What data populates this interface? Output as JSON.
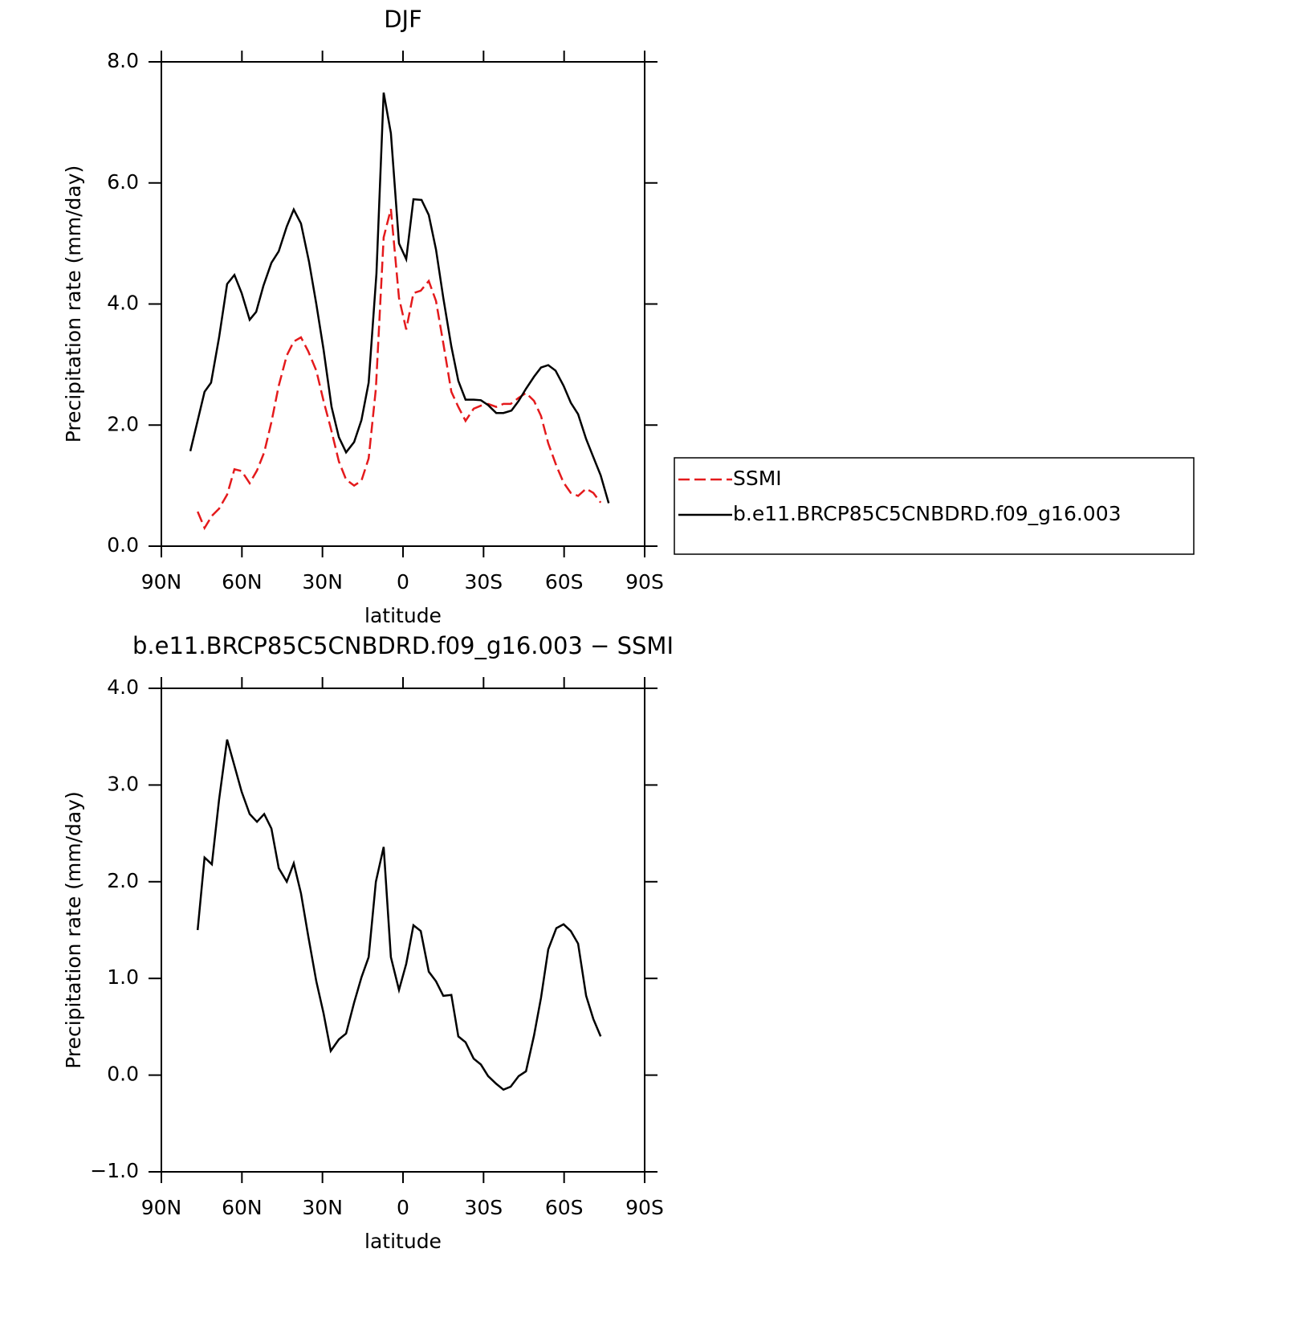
{
  "chart_data": [
    {
      "type": "line",
      "title": "DJF",
      "xlabel": "latitude",
      "ylabel": "Precipitation rate (mm/day)",
      "xlim": [
        90,
        -90
      ],
      "xticks": [
        {
          "value": 90,
          "label": "90N"
        },
        {
          "value": 60,
          "label": "60N"
        },
        {
          "value": 30,
          "label": "30N"
        },
        0,
        {
          "value": -30,
          "label": "30S"
        },
        {
          "value": -60,
          "label": "60S"
        },
        {
          "value": -90,
          "label": "90S"
        }
      ],
      "ylim": [
        0,
        8
      ],
      "yticks": [
        {
          "value": 0,
          "label": "0.0"
        },
        {
          "value": 2,
          "label": "2.0"
        },
        {
          "value": 4,
          "label": "4.0"
        },
        {
          "value": 6,
          "label": "6.0"
        },
        {
          "value": 8,
          "label": "8.0"
        }
      ],
      "legend": "outside right",
      "series": [
        {
          "name": "SSMI",
          "color": "#e41a1c",
          "dash": "dashed",
          "x": [
            76.5,
            73.9,
            71.2,
            68.5,
            65.5,
            62.8,
            60.1,
            57.1,
            54.4,
            51.7,
            49.0,
            46.3,
            43.3,
            40.7,
            38.0,
            35.3,
            32.3,
            29.6,
            26.9,
            23.9,
            21.2,
            18.2,
            15.5,
            12.8,
            10.1,
            7.2,
            4.5,
            1.5,
            -1.2,
            -3.9,
            -6.6,
            -9.6,
            -12.3,
            -15.0,
            -18.0,
            -20.6,
            -23.3,
            -26.3,
            -29.0,
            -31.7,
            -34.7,
            -37.4,
            -40.1,
            -43.1,
            -45.8,
            -48.8,
            -51.4,
            -54.1,
            -57.1,
            -59.8,
            -62.5,
            -65.2,
            -68.2,
            -70.9,
            -73.6
          ],
          "values": [
            0.57,
            0.3,
            0.5,
            0.62,
            0.85,
            1.27,
            1.24,
            1.04,
            1.25,
            1.55,
            2.05,
            2.65,
            3.15,
            3.38,
            3.45,
            3.22,
            2.9,
            2.4,
            1.95,
            1.4,
            1.1,
            1.0,
            1.08,
            1.45,
            2.6,
            5.1,
            5.57,
            4.1,
            3.58,
            4.18,
            4.22,
            4.38,
            4.05,
            3.35,
            2.55,
            2.3,
            2.07,
            2.27,
            2.32,
            2.35,
            2.3,
            2.35,
            2.35,
            2.45,
            2.53,
            2.4,
            2.15,
            1.7,
            1.33,
            1.05,
            0.88,
            0.83,
            0.95,
            0.88,
            0.72
          ]
        },
        {
          "name": "b.e11.BRCP85C5CNBDRD.f09_g16.003",
          "color": "#000000",
          "dash": "solid",
          "x": [
            79.2,
            73.9,
            71.5,
            68.5,
            65.5,
            62.8,
            60.1,
            57.1,
            54.7,
            52.0,
            49.0,
            46.3,
            43.3,
            40.7,
            38.0,
            35.0,
            32.3,
            29.6,
            26.6,
            23.9,
            21.2,
            18.2,
            15.5,
            12.8,
            9.9,
            7.2,
            4.5,
            1.5,
            -1.2,
            -3.9,
            -6.9,
            -9.6,
            -12.3,
            -15.0,
            -18.0,
            -20.6,
            -23.3,
            -26.3,
            -29.0,
            -31.7,
            -34.7,
            -37.4,
            -40.4,
            -43.1,
            -45.8,
            -48.8,
            -51.4,
            -54.1,
            -56.8,
            -59.8,
            -62.5,
            -65.2,
            -68.2,
            -70.9,
            -73.6,
            -76.6
          ],
          "values": [
            1.57,
            2.55,
            2.7,
            3.45,
            4.33,
            4.48,
            4.18,
            3.74,
            3.87,
            4.3,
            4.68,
            4.87,
            5.28,
            5.56,
            5.33,
            4.7,
            4.0,
            3.25,
            2.3,
            1.8,
            1.55,
            1.72,
            2.08,
            2.7,
            4.5,
            7.49,
            6.82,
            5.0,
            4.74,
            5.73,
            5.72,
            5.47,
            4.9,
            4.1,
            3.3,
            2.73,
            2.42,
            2.42,
            2.41,
            2.33,
            2.2,
            2.2,
            2.24,
            2.4,
            2.6,
            2.8,
            2.95,
            2.99,
            2.9,
            2.65,
            2.37,
            2.18,
            1.77,
            1.47,
            1.17,
            0.71
          ]
        }
      ]
    },
    {
      "type": "line",
      "title": "b.e11.BRCP85C5CNBDRD.f09_g16.003 − SSMI",
      "xlabel": "latitude",
      "ylabel": "Precipitation rate (mm/day)",
      "xlim": [
        90,
        -90
      ],
      "xticks": [
        {
          "value": 90,
          "label": "90N"
        },
        {
          "value": 60,
          "label": "60N"
        },
        {
          "value": 30,
          "label": "30N"
        },
        0,
        {
          "value": -30,
          "label": "30S"
        },
        {
          "value": -60,
          "label": "60S"
        },
        {
          "value": -90,
          "label": "90S"
        }
      ],
      "ylim": [
        -1,
        4
      ],
      "yticks": [
        {
          "value": -1,
          "label": "−1.0"
        },
        {
          "value": 0,
          "label": "0.0"
        },
        {
          "value": 1,
          "label": "1.0"
        },
        {
          "value": 2,
          "label": "2.0"
        },
        {
          "value": 3,
          "label": "3.0"
        },
        {
          "value": 4,
          "label": "4.0"
        }
      ],
      "series": [
        {
          "color": "#000000",
          "dash": "solid",
          "x": [
            76.5,
            73.9,
            71.2,
            68.5,
            65.5,
            62.8,
            60.1,
            57.1,
            54.4,
            51.7,
            49.0,
            46.3,
            43.3,
            40.7,
            38.0,
            35.3,
            32.3,
            29.6,
            26.9,
            23.9,
            21.2,
            18.2,
            15.5,
            12.8,
            10.1,
            7.2,
            4.5,
            1.5,
            -1.2,
            -3.9,
            -6.6,
            -9.6,
            -12.3,
            -15.0,
            -18.0,
            -20.6,
            -23.3,
            -26.3,
            -29.0,
            -31.7,
            -34.7,
            -37.4,
            -40.1,
            -43.1,
            -45.8,
            -48.8,
            -51.4,
            -54.1,
            -57.1,
            -59.8,
            -62.5,
            -65.2,
            -68.2,
            -70.9,
            -73.6
          ],
          "values": [
            1.5,
            2.25,
            2.18,
            2.85,
            3.47,
            3.2,
            2.93,
            2.7,
            2.62,
            2.7,
            2.55,
            2.14,
            2.0,
            2.19,
            1.88,
            1.44,
            0.97,
            0.64,
            0.25,
            0.37,
            0.43,
            0.75,
            1.01,
            1.22,
            2.0,
            2.36,
            1.22,
            0.88,
            1.15,
            1.55,
            1.49,
            1.07,
            0.97,
            0.82,
            0.83,
            0.4,
            0.34,
            0.17,
            0.11,
            -0.01,
            -0.09,
            -0.15,
            -0.12,
            -0.01,
            0.04,
            0.41,
            0.8,
            1.3,
            1.52,
            1.56,
            1.49,
            1.36,
            0.82,
            0.58,
            0.4
          ]
        }
      ]
    }
  ]
}
